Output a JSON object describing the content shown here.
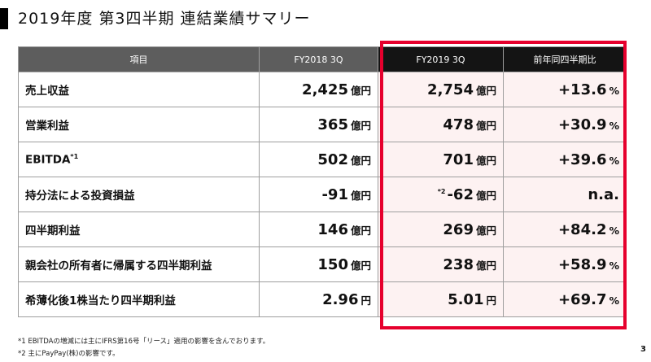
{
  "title": "2019年度 第3四半期 連結業績サマリー",
  "header": {
    "item": "項目",
    "fy2018": "FY2018 3Q",
    "fy2019": "FY2019 3Q",
    "yoy": "前年同四半期比"
  },
  "rows": [
    {
      "label": "売上収益",
      "fy2018": "2,425",
      "fy2018_unit": "億円",
      "fy2019_note": "",
      "fy2019": "2,754",
      "fy2019_unit": "億円",
      "yoy": "+13.6",
      "yoy_unit": "%"
    },
    {
      "label": "営業利益",
      "fy2018": "365",
      "fy2018_unit": "億円",
      "fy2019_note": "",
      "fy2019": "478",
      "fy2019_unit": "億円",
      "yoy": "+30.9",
      "yoy_unit": "%"
    },
    {
      "label": "EBITDA",
      "label_sup": "*1",
      "fy2018": "502",
      "fy2018_unit": "億円",
      "fy2019_note": "",
      "fy2019": "701",
      "fy2019_unit": "億円",
      "yoy": "+39.6",
      "yoy_unit": "%"
    },
    {
      "label": "持分法による投資損益",
      "fy2018": "-91",
      "fy2018_unit": "億円",
      "fy2019_note": "*2",
      "fy2019": "-62",
      "fy2019_unit": "億円",
      "yoy": "n.a.",
      "yoy_unit": ""
    },
    {
      "label": "四半期利益",
      "fy2018": "146",
      "fy2018_unit": "億円",
      "fy2019_note": "",
      "fy2019": "269",
      "fy2019_unit": "億円",
      "yoy": "+84.2",
      "yoy_unit": "%"
    },
    {
      "label": "親会社の所有者に帰属する四半期利益",
      "fy2018": "150",
      "fy2018_unit": "億円",
      "fy2019_note": "",
      "fy2019": "238",
      "fy2019_unit": "億円",
      "yoy": "+58.9",
      "yoy_unit": "%"
    },
    {
      "label": "希薄化後1株当たり四半期利益",
      "fy2018": "2.96",
      "fy2018_unit": "円",
      "fy2019_note": "",
      "fy2019": "5.01",
      "fy2019_unit": "円",
      "yoy": "+69.7",
      "yoy_unit": "%"
    }
  ],
  "footnotes": [
    "*1 EBITDAの増減には主にIFRS第16号「リース」適用の影響を含んでおります。",
    "*2 主にPayPay(株)の影響です。"
  ],
  "page_number": "3",
  "colors": {
    "accent_red": "#e6002d",
    "header_gray": "#5d5d5d",
    "header_black": "#141414",
    "highlight_pink": "#fdf2f2"
  }
}
